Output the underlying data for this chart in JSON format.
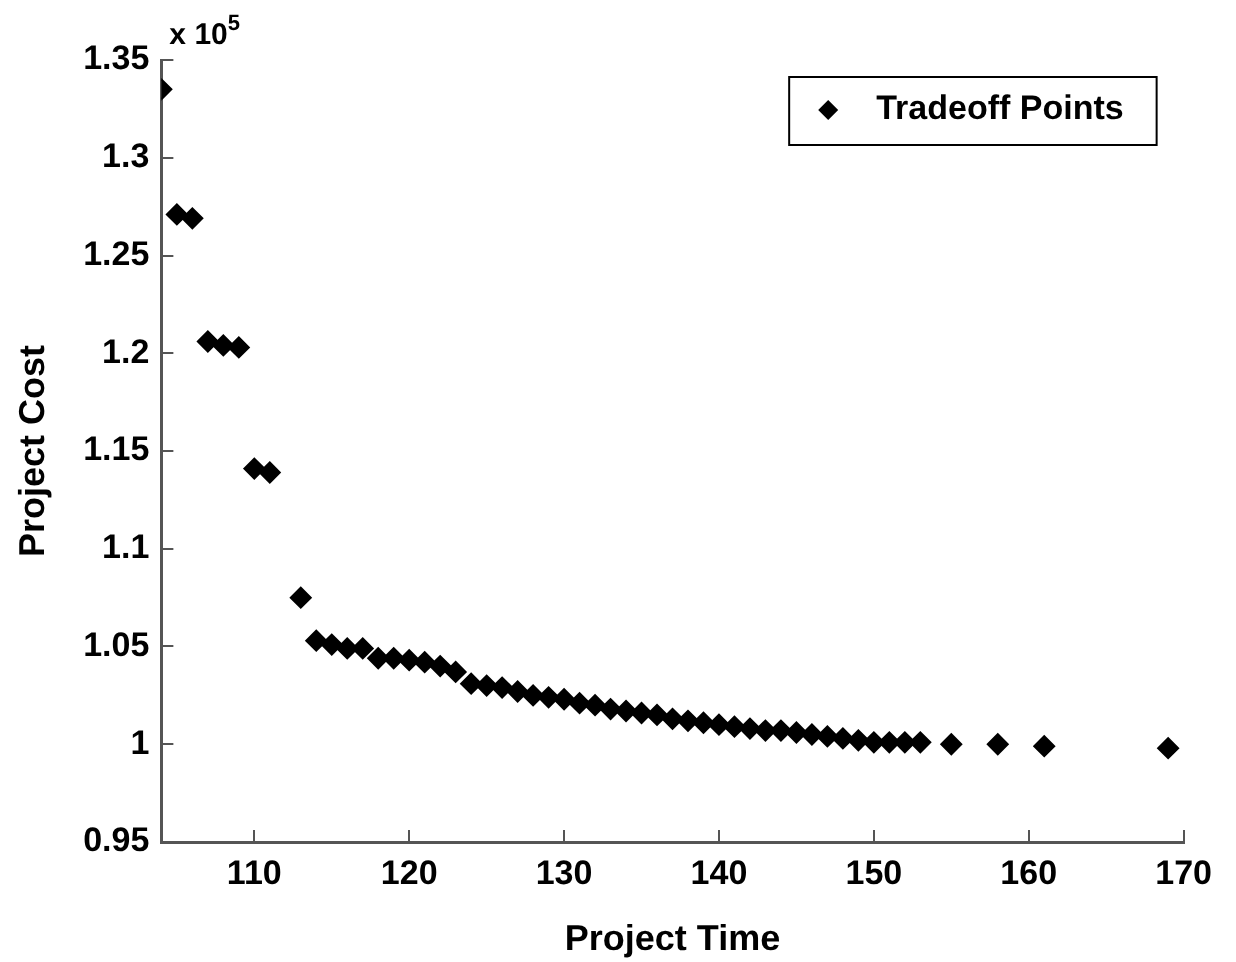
{
  "chart_data": {
    "type": "scatter",
    "xlabel": "Project Time",
    "ylabel": "Project Cost",
    "annotations": [
      "x 10$^{5}$"
    ],
    "x": [
      104,
      105,
      106,
      107,
      108,
      109,
      110,
      111,
      113,
      114,
      115,
      116,
      117,
      118,
      119,
      120,
      121,
      122,
      123,
      124,
      125,
      126,
      127,
      128,
      129,
      130,
      131,
      132,
      133,
      134,
      135,
      136,
      137,
      138,
      139,
      140,
      141,
      142,
      143,
      144,
      145,
      146,
      147,
      148,
      149,
      150,
      151,
      152,
      153,
      155,
      158,
      161,
      169
    ],
    "series": [
      {
        "name": "Tradeoff Points",
        "color": "#000000",
        "values": [
          1.335,
          1.271,
          1.269,
          1.206,
          1.204,
          1.203,
          1.141,
          1.139,
          1.075,
          1.053,
          1.051,
          1.049,
          1.049,
          1.044,
          1.044,
          1.043,
          1.042,
          1.04,
          1.037,
          1.031,
          1.03,
          1.029,
          1.027,
          1.025,
          1.024,
          1.023,
          1.021,
          1.02,
          1.018,
          1.017,
          1.016,
          1.015,
          1.013,
          1.012,
          1.011,
          1.01,
          1.009,
          1.008,
          1.007,
          1.007,
          1.006,
          1.005,
          1.004,
          1.003,
          1.002,
          1.001,
          1.001,
          1.001,
          1.001,
          1.0,
          1.0,
          0.999,
          0.998
        ]
      }
    ],
    "xlim": [
      104,
      170
    ],
    "xticks": [
      110,
      120,
      130,
      140,
      150,
      160,
      170
    ],
    "ylim": [
      0.95,
      1.35
    ],
    "yticks": [
      0.95,
      1,
      1.05,
      1.1,
      1.15,
      1.2,
      1.25,
      1.3,
      1.35
    ],
    "grid": false,
    "legend": "top right",
    "marker": "diamond"
  }
}
